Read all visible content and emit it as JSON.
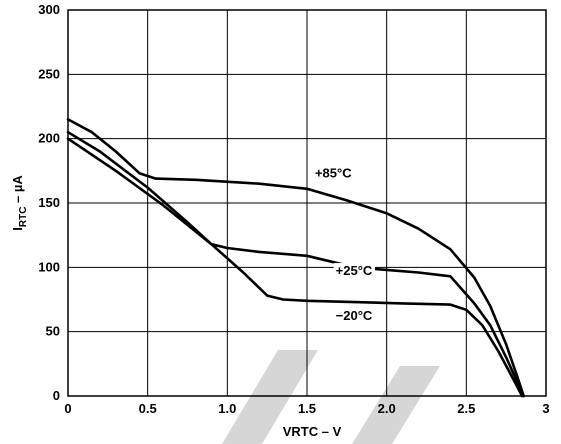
{
  "chart_data": {
    "type": "line",
    "xlabel": "VRTC – V",
    "ylabel_main": "I",
    "ylabel_sub": "RTC",
    "ylabel_rest": " – µA",
    "xlim": [
      0,
      3
    ],
    "ylim": [
      0,
      300
    ],
    "x_ticks": [
      0,
      0.5,
      1.0,
      1.5,
      2.0,
      2.5,
      3
    ],
    "x_tick_labels": [
      "0",
      "0.5",
      "1.0",
      "1.5",
      "2.0",
      "2.5",
      "3"
    ],
    "y_ticks": [
      0,
      50,
      100,
      150,
      200,
      250,
      300
    ],
    "y_tick_labels": [
      "0",
      "50",
      "100",
      "150",
      "200",
      "250",
      "300"
    ],
    "grid": true,
    "series": [
      {
        "name": "+85°C",
        "label_at": [
          1.55,
          170
        ],
        "points": [
          [
            0,
            215
          ],
          [
            0.15,
            205
          ],
          [
            0.3,
            190
          ],
          [
            0.45,
            173
          ],
          [
            0.55,
            169
          ],
          [
            0.8,
            168
          ],
          [
            1.2,
            165
          ],
          [
            1.5,
            161
          ],
          [
            1.75,
            152
          ],
          [
            2.0,
            142
          ],
          [
            2.2,
            130
          ],
          [
            2.4,
            114
          ],
          [
            2.55,
            92
          ],
          [
            2.65,
            70
          ],
          [
            2.75,
            40
          ],
          [
            2.82,
            15
          ],
          [
            2.86,
            0
          ]
        ]
      },
      {
        "name": "+25°C",
        "label_at": [
          1.68,
          94
        ],
        "points": [
          [
            0,
            205
          ],
          [
            0.2,
            190
          ],
          [
            0.5,
            162
          ],
          [
            0.75,
            135
          ],
          [
            0.9,
            118
          ],
          [
            1.0,
            115
          ],
          [
            1.2,
            112
          ],
          [
            1.5,
            109
          ],
          [
            1.8,
            100
          ],
          [
            2.0,
            98
          ],
          [
            2.2,
            96
          ],
          [
            2.4,
            93
          ],
          [
            2.55,
            72
          ],
          [
            2.65,
            55
          ],
          [
            2.75,
            30
          ],
          [
            2.83,
            8
          ],
          [
            2.86,
            0
          ]
        ]
      },
      {
        "name": "−20°C",
        "label_at": [
          1.68,
          59
        ],
        "points": [
          [
            0,
            200
          ],
          [
            0.3,
            175
          ],
          [
            0.6,
            148
          ],
          [
            0.9,
            118
          ],
          [
            1.1,
            96
          ],
          [
            1.25,
            78
          ],
          [
            1.35,
            75
          ],
          [
            1.5,
            74
          ],
          [
            1.8,
            73
          ],
          [
            2.1,
            72
          ],
          [
            2.4,
            71
          ],
          [
            2.5,
            67
          ],
          [
            2.6,
            55
          ],
          [
            2.7,
            35
          ],
          [
            2.8,
            12
          ],
          [
            2.85,
            0
          ]
        ]
      }
    ]
  }
}
